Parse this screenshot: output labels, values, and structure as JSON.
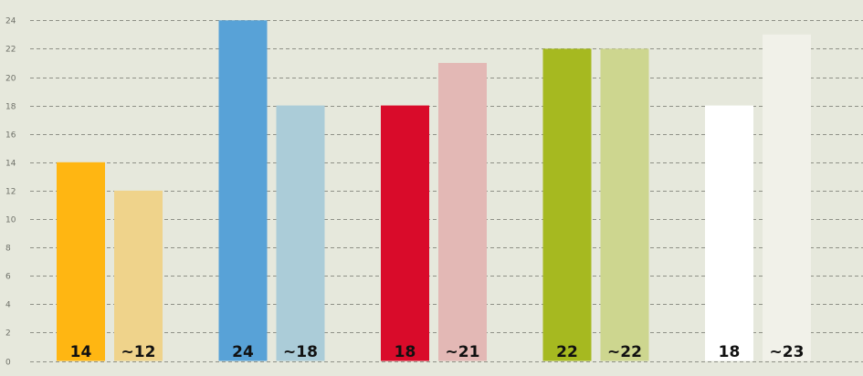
{
  "chart_data": {
    "type": "bar",
    "title": "",
    "xlabel": "",
    "ylabel": "",
    "ylim": [
      0,
      25
    ],
    "yticks": [
      0,
      2,
      4,
      6,
      8,
      10,
      12,
      14,
      16,
      18,
      20,
      22,
      24
    ],
    "grid": "horizontal dashed",
    "groups": [
      {
        "value": 14,
        "label": "14",
        "estimate": 12,
        "estimate_label": "~12",
        "color": "#ffb612",
        "estimate_color": "#efd38b"
      },
      {
        "value": 24,
        "label": "24",
        "estimate": 18,
        "estimate_label": "~18",
        "color": "#58a2d7",
        "estimate_color": "#abccd8"
      },
      {
        "value": 18,
        "label": "18",
        "estimate": 21,
        "estimate_label": "~21",
        "color": "#d90b2a",
        "estimate_color": "#e3b8b5"
      },
      {
        "value": 22,
        "label": "22",
        "estimate": 22,
        "estimate_label": "~22",
        "color": "#a6b920",
        "estimate_color": "#cdd68f"
      },
      {
        "value": 18,
        "label": "18",
        "estimate": 23,
        "estimate_label": "~23",
        "color": "#ffffff",
        "estimate_color": "#f1f1e9"
      }
    ]
  },
  "colors": {
    "background": "#e6e8dc",
    "grid": "#8f9187",
    "axis_text": "#6e7068",
    "label_text": "#111111"
  }
}
